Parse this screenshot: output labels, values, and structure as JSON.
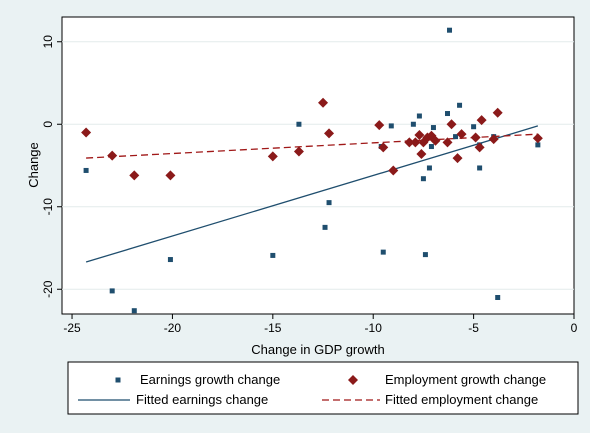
{
  "chart_data": {
    "type": "scatter",
    "xlabel": "Change in GDP growth",
    "ylabel": "Change",
    "xlim": [
      -25.5,
      0
    ],
    "ylim": [
      -23,
      13
    ],
    "xticks": [
      -25,
      -20,
      -15,
      -10,
      -5,
      0
    ],
    "yticks": [
      10,
      0,
      -10,
      -20
    ],
    "grid": "horizontal",
    "legend_position": "bottom",
    "colors": {
      "earnings": "#1f4e6e",
      "employment": "#8b1a1a",
      "fitted_earnings": "#1f4e6e",
      "fitted_employment": "#a01818",
      "background": "#eaf2f3",
      "grid": "#e3ebec"
    },
    "series": [
      {
        "name": "Earnings growth change",
        "marker": "square",
        "points": [
          [
            -24.3,
            -5.6
          ],
          [
            -23.0,
            -20.2
          ],
          [
            -21.9,
            -22.6
          ],
          [
            -20.1,
            -16.4
          ],
          [
            -15.0,
            -15.9
          ],
          [
            -13.7,
            0.0
          ],
          [
            -12.2,
            -9.5
          ],
          [
            -12.4,
            -12.5
          ],
          [
            -9.5,
            -15.5
          ],
          [
            -9.6,
            -2.7
          ],
          [
            -9.1,
            -0.2
          ],
          [
            -8.0,
            0.0
          ],
          [
            -7.7,
            1.0
          ],
          [
            -7.5,
            -6.6
          ],
          [
            -7.4,
            -15.8
          ],
          [
            -7.2,
            -5.3
          ],
          [
            -7.0,
            -0.4
          ],
          [
            -7.1,
            -2.7
          ],
          [
            -6.3,
            1.3
          ],
          [
            -6.2,
            11.4
          ],
          [
            -5.7,
            2.3
          ],
          [
            -5.9,
            -1.5
          ],
          [
            -5.0,
            -0.3
          ],
          [
            -4.7,
            -5.3
          ],
          [
            -4.7,
            -2.5
          ],
          [
            -4.0,
            -1.5
          ],
          [
            -3.8,
            -21.0
          ],
          [
            -1.8,
            -2.5
          ]
        ]
      },
      {
        "name": "Employment growth change",
        "marker": "diamond",
        "points": [
          [
            -24.3,
            -1.0
          ],
          [
            -23.0,
            -3.8
          ],
          [
            -21.9,
            -6.2
          ],
          [
            -20.1,
            -6.2
          ],
          [
            -15.0,
            -3.9
          ],
          [
            -13.7,
            -3.3
          ],
          [
            -12.5,
            2.6
          ],
          [
            -12.2,
            -1.1
          ],
          [
            -9.7,
            -0.1
          ],
          [
            -9.5,
            -2.8
          ],
          [
            -9.0,
            -5.6
          ],
          [
            -8.2,
            -2.2
          ],
          [
            -7.9,
            -2.2
          ],
          [
            -7.7,
            -1.3
          ],
          [
            -7.6,
            -3.6
          ],
          [
            -7.5,
            -2.2
          ],
          [
            -7.3,
            -1.6
          ],
          [
            -7.1,
            -1.4
          ],
          [
            -6.9,
            -2.0
          ],
          [
            -6.3,
            -2.2
          ],
          [
            -6.1,
            0.0
          ],
          [
            -5.8,
            -4.1
          ],
          [
            -5.6,
            -1.2
          ],
          [
            -4.9,
            -1.6
          ],
          [
            -4.7,
            -2.8
          ],
          [
            -4.6,
            0.5
          ],
          [
            -4.0,
            -1.8
          ],
          [
            -3.8,
            1.4
          ],
          [
            -1.8,
            -1.7
          ]
        ]
      }
    ],
    "fitted_lines": [
      {
        "name": "Fitted earnings change",
        "style": "solid",
        "x": [
          -24.3,
          -1.8
        ],
        "y": [
          -16.7,
          -0.2
        ]
      },
      {
        "name": "Fitted employment change",
        "style": "dashed",
        "x": [
          -24.3,
          -1.8
        ],
        "y": [
          -4.1,
          -1.2
        ]
      }
    ],
    "legend": [
      {
        "label": "Earnings growth change",
        "key": "earnings-marker"
      },
      {
        "label": "Employment growth change",
        "key": "employment-marker"
      },
      {
        "label": "Fitted earnings change",
        "key": "fitted-earnings-line"
      },
      {
        "label": "Fitted employment change",
        "key": "fitted-employment-line"
      }
    ]
  }
}
